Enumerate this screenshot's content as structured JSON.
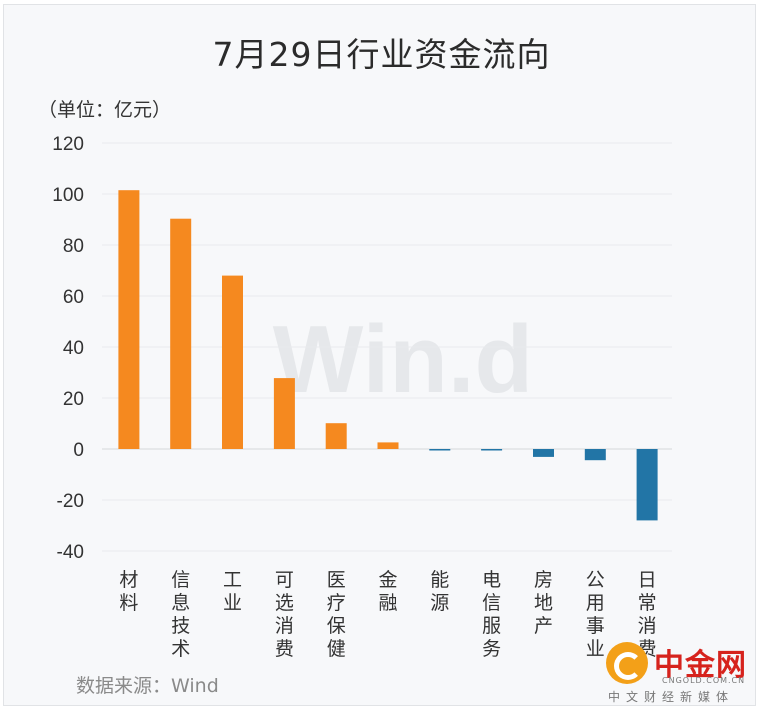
{
  "chart_data": {
    "type": "bar",
    "title": "7月29日行业资金流向",
    "unit_label": "（单位：亿元）",
    "source_label": "数据来源：Wind",
    "watermark": "Win.d",
    "categories": [
      "材料",
      "信息技术",
      "工业",
      "可选消费",
      "医疗保健",
      "金融",
      "能源",
      "电信服务",
      "房地产",
      "公用事业",
      "日常消费"
    ],
    "values": [
      101.5,
      90.3,
      68.0,
      27.8,
      10.1,
      2.6,
      -0.4,
      -0.5,
      -3.1,
      -4.4,
      -28.0
    ],
    "yticks": [
      120,
      100,
      80,
      60,
      40,
      20,
      0,
      -20,
      -40
    ],
    "ylim": [
      -40,
      120
    ],
    "grid": true,
    "legend": "none",
    "colors": {
      "positive": "#f5891f",
      "negative": "#2275a6"
    }
  },
  "logo": {
    "name": "中金网",
    "domain": "CNGOLD.COM.CN",
    "slogan": "中文财经新媒体"
  }
}
